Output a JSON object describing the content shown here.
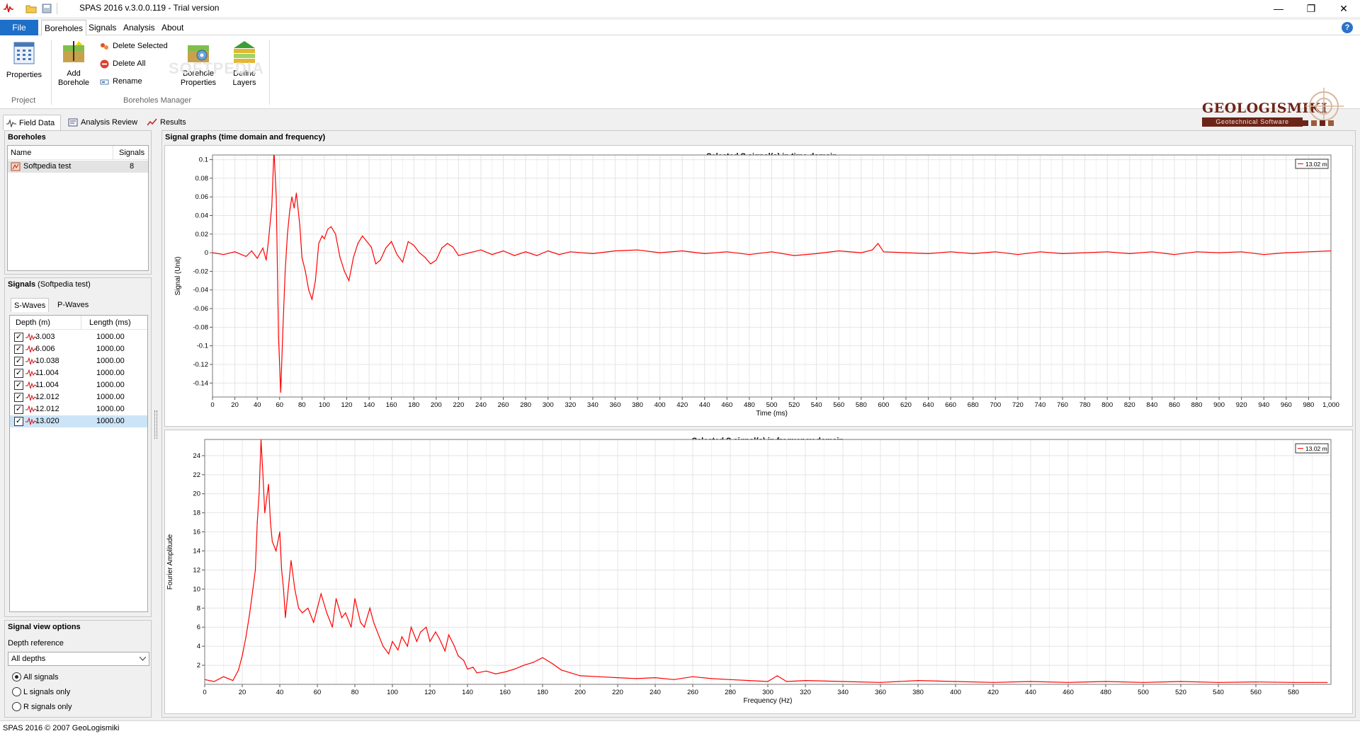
{
  "window": {
    "title": "SPAS 2016 v.3.0.0.119 - Trial version",
    "minimize": "—",
    "maximize": "❐",
    "close": "✕"
  },
  "menu": {
    "file": "File",
    "tabs": [
      "Boreholes",
      "Signals",
      "Analysis",
      "About"
    ],
    "help": "?"
  },
  "ribbon": {
    "properties": "Properties",
    "add_borehole": [
      "Add",
      "Borehole"
    ],
    "delete_selected": "Delete Selected",
    "delete_all": "Delete All",
    "rename": "Rename",
    "borehole_properties": [
      "Borehole",
      "Properties"
    ],
    "define_layers": [
      "Define",
      "Layers"
    ],
    "group_project": "Project",
    "group_boreholes_manager": "Boreholes Manager"
  },
  "logo": {
    "name": "GEOLOGISMIKI",
    "subtitle": "Geotechnical Software",
    "watermark": "SOFTPEDIA"
  },
  "view_tabs": [
    "Field Data",
    "Analysis Review",
    "Results"
  ],
  "boreholes_panel": {
    "title": "Boreholes",
    "col_name": "Name",
    "col_signals": "Signals",
    "rows": [
      {
        "name": "Softpedia test",
        "signals": "8"
      }
    ],
    "splitter": "......."
  },
  "signals_panel": {
    "title_bold": "Signals",
    "title_rest": " (Softpedia test)",
    "tabs": [
      "S-Waves",
      "P-Waves"
    ],
    "col_depth": "Depth (m)",
    "col_length": "Length (ms)",
    "check_mark": "✓",
    "rows": [
      {
        "depth": "3.003",
        "length": "1000.00"
      },
      {
        "depth": "6.006",
        "length": "1000.00"
      },
      {
        "depth": "10.038",
        "length": "1000.00"
      },
      {
        "depth": "11.004",
        "length": "1000.00"
      },
      {
        "depth": "11.004",
        "length": "1000.00"
      },
      {
        "depth": "12.012",
        "length": "1000.00"
      },
      {
        "depth": "12.012",
        "length": "1000.00"
      },
      {
        "depth": "13.020",
        "length": "1000.00"
      }
    ]
  },
  "view_options": {
    "title": "Signal view options",
    "depth_reference_label": "Depth reference",
    "depth_reference_value": "All depths",
    "radios": [
      "All signals",
      "L signals only",
      "R signals only"
    ]
  },
  "graphs_panel": {
    "title": "Signal graphs (time domain and frequency)"
  },
  "status": "SPAS 2016 © 2007 GeoLogismiki",
  "colors": {
    "signal": "#ff0000",
    "accent": "#1e6fc8",
    "brand": "#6d2418"
  },
  "chart_data": [
    {
      "type": "line",
      "title": "Selected S signal(s) in time domain",
      "xlabel": "Time (ms)",
      "ylabel": "Signal (Unit)",
      "xlim": [
        0,
        1000
      ],
      "ylim": [
        -0.155,
        0.105
      ],
      "xticks": [
        "0",
        "20",
        "40",
        "60",
        "80",
        "100",
        "120",
        "140",
        "160",
        "180",
        "200",
        "220",
        "240",
        "260",
        "280",
        "300",
        "320",
        "340",
        "360",
        "380",
        "400",
        "420",
        "440",
        "460",
        "480",
        "500",
        "520",
        "540",
        "560",
        "580",
        "600",
        "620",
        "640",
        "660",
        "680",
        "700",
        "720",
        "740",
        "760",
        "780",
        "800",
        "820",
        "840",
        "860",
        "880",
        "900",
        "920",
        "940",
        "960",
        "980",
        "1,000"
      ],
      "yticks": [
        "0.1",
        "0.08",
        "0.06",
        "0.04",
        "0.02",
        "0",
        "-0.02",
        "-0.04",
        "-0.06",
        "-0.08",
        "-0.1",
        "-0.12",
        "-0.14"
      ],
      "ytick_values": [
        0.1,
        0.08,
        0.06,
        0.04,
        0.02,
        0,
        -0.02,
        -0.04,
        -0.06,
        -0.08,
        -0.1,
        -0.12,
        -0.14
      ],
      "grid": true,
      "legend": "top-right",
      "series": [
        {
          "name": "13.02 m",
          "x": [
            0,
            10,
            20,
            30,
            35,
            40,
            45,
            48,
            50,
            53,
            55,
            57,
            59,
            61,
            63,
            65,
            67,
            69,
            71,
            73,
            75,
            78,
            80,
            83,
            86,
            89,
            92,
            95,
            98,
            100,
            103,
            106,
            110,
            114,
            118,
            122,
            126,
            130,
            134,
            138,
            142,
            146,
            150,
            155,
            160,
            165,
            170,
            175,
            180,
            185,
            190,
            195,
            200,
            205,
            210,
            215,
            220,
            230,
            240,
            250,
            260,
            270,
            280,
            290,
            300,
            310,
            320,
            340,
            360,
            380,
            400,
            420,
            440,
            460,
            480,
            500,
            520,
            540,
            560,
            580,
            590,
            595,
            600,
            620,
            640,
            660,
            680,
            700,
            720,
            740,
            760,
            780,
            800,
            820,
            840,
            860,
            880,
            900,
            920,
            940,
            960,
            980,
            1000
          ],
          "y": [
            0,
            -0.002,
            0.001,
            -0.004,
            0.002,
            -0.006,
            0.005,
            -0.008,
            0.012,
            0.05,
            0.11,
            0.06,
            -0.09,
            -0.15,
            -0.08,
            -0.02,
            0.02,
            0.045,
            0.06,
            0.048,
            0.064,
            0.03,
            -0.005,
            -0.02,
            -0.04,
            -0.05,
            -0.03,
            0.01,
            0.018,
            0.015,
            0.025,
            0.028,
            0.02,
            -0.005,
            -0.02,
            -0.03,
            -0.005,
            0.01,
            0.018,
            0.012,
            0.006,
            -0.012,
            -0.008,
            0.005,
            0.012,
            -0.002,
            -0.01,
            0.012,
            0.008,
            0,
            -0.005,
            -0.012,
            -0.008,
            0.005,
            0.01,
            0.006,
            -0.003,
            0,
            0.003,
            -0.002,
            0.002,
            -0.003,
            0.001,
            -0.003,
            0.002,
            -0.002,
            0.001,
            -0.001,
            0.002,
            0.003,
            0,
            0.002,
            -0.001,
            0.001,
            -0.002,
            0.001,
            -0.003,
            -0.001,
            0.002,
            0,
            0.003,
            0.01,
            0.001,
            0,
            -0.001,
            0.001,
            -0.001,
            0.001,
            -0.002,
            0.001,
            -0.001,
            0,
            0.001,
            -0.001,
            0.001,
            -0.002,
            0.001,
            0,
            0.001,
            -0.002,
            0,
            0.001,
            0.002
          ]
        }
      ]
    },
    {
      "type": "line",
      "title": "Selected S signal(s) in frequency domain",
      "xlabel": "Frequency (Hz)",
      "ylabel": "Fourier Amplitude",
      "xlim": [
        0,
        600
      ],
      "ylim": [
        0,
        25.7
      ],
      "xticks": [
        "0",
        "20",
        "40",
        "60",
        "80",
        "100",
        "120",
        "140",
        "160",
        "180",
        "200",
        "220",
        "240",
        "260",
        "280",
        "300",
        "320",
        "340",
        "360",
        "380",
        "400",
        "420",
        "440",
        "460",
        "480",
        "500",
        "520",
        "540",
        "560",
        "580"
      ],
      "yticks": [
        "24",
        "22",
        "20",
        "18",
        "16",
        "14",
        "12",
        "10",
        "8",
        "6",
        "4",
        "2"
      ],
      "ytick_values": [
        24,
        22,
        20,
        18,
        16,
        14,
        12,
        10,
        8,
        6,
        4,
        2
      ],
      "grid": true,
      "legend": "top-right",
      "series": [
        {
          "name": "13.02 m",
          "x": [
            0,
            5,
            10,
            15,
            18,
            20,
            22,
            24,
            25,
            27,
            28,
            29,
            30,
            31,
            32,
            34,
            35,
            36,
            38,
            40,
            41,
            42,
            43,
            45,
            46,
            48,
            50,
            52,
            55,
            58,
            60,
            62,
            65,
            68,
            70,
            73,
            75,
            78,
            80,
            83,
            85,
            88,
            90,
            93,
            95,
            98,
            100,
            103,
            105,
            108,
            110,
            113,
            115,
            118,
            120,
            123,
            125,
            128,
            130,
            133,
            135,
            138,
            140,
            143,
            145,
            150,
            155,
            160,
            165,
            170,
            175,
            180,
            185,
            190,
            195,
            200,
            210,
            220,
            230,
            240,
            250,
            260,
            270,
            280,
            290,
            300,
            305,
            310,
            320,
            340,
            360,
            380,
            400,
            420,
            440,
            460,
            480,
            500,
            520,
            540,
            560,
            580,
            598
          ],
          "y": [
            0.5,
            0.3,
            0.8,
            0.4,
            1.5,
            3,
            5,
            7.5,
            9,
            12,
            17,
            20,
            25.7,
            22,
            18,
            21,
            17,
            15,
            14,
            16,
            12,
            10,
            7,
            11,
            13,
            10,
            8,
            7.5,
            8,
            6.5,
            8,
            9.5,
            7.5,
            6,
            9,
            7,
            7.5,
            6,
            9,
            6.5,
            6,
            8,
            6.5,
            5,
            4,
            3.2,
            4.5,
            3.6,
            5,
            4,
            6,
            4.5,
            5.5,
            6,
            4.5,
            5.5,
            4.8,
            3.5,
            5.2,
            4,
            3,
            2.5,
            1.6,
            1.8,
            1.2,
            1.4,
            1.1,
            1.3,
            1.6,
            2,
            2.3,
            2.8,
            2.2,
            1.5,
            1.2,
            0.9,
            0.8,
            0.7,
            0.6,
            0.7,
            0.5,
            0.8,
            0.6,
            0.5,
            0.4,
            0.3,
            0.9,
            0.3,
            0.4,
            0.3,
            0.2,
            0.4,
            0.3,
            0.2,
            0.3,
            0.2,
            0.3,
            0.2,
            0.3,
            0.2,
            0.25,
            0.2,
            0.2
          ]
        }
      ]
    }
  ]
}
